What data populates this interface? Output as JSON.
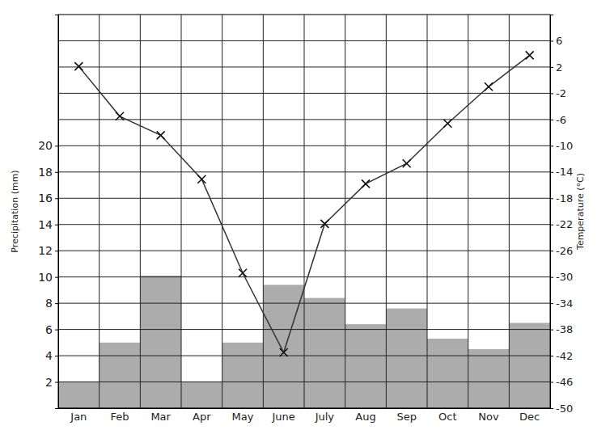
{
  "chart_data": {
    "type": "combo",
    "y_label": "Precipitation (mm)",
    "y2_label": "Temperature (°C)",
    "categories": [
      "Jan",
      "Feb",
      "Mar",
      "Apr",
      "May",
      "June",
      "July",
      "Aug",
      "Sep",
      "Oct",
      "Nov",
      "Dec"
    ],
    "series": [
      {
        "type": "bar",
        "axis": "y",
        "color": "#9e9e9e",
        "values": [
          2,
          5,
          10.1,
          2,
          5,
          9.4,
          8.4,
          6.4,
          7.6,
          5.3,
          4.5,
          6.5
        ]
      },
      {
        "type": "line",
        "axis": "y2",
        "color": "#333333",
        "marker": "x",
        "values": [
          2.1,
          -5.5,
          -8.4,
          -15.1,
          -29.4,
          -41.5,
          -21.9,
          -15.8,
          -12.7,
          -6.6,
          -1,
          3.8
        ]
      }
    ],
    "ylim": [
      0,
      30
    ],
    "yticks": [
      2,
      4,
      6,
      8,
      10,
      12,
      14,
      16,
      18,
      20
    ],
    "y2lim": [
      -50,
      10
    ],
    "y2ticks": [
      -50,
      -46,
      -42,
      -38,
      -34,
      -30,
      -26,
      -22,
      -18,
      -14,
      -10,
      -6,
      -2,
      2,
      6
    ],
    "grid": true
  }
}
